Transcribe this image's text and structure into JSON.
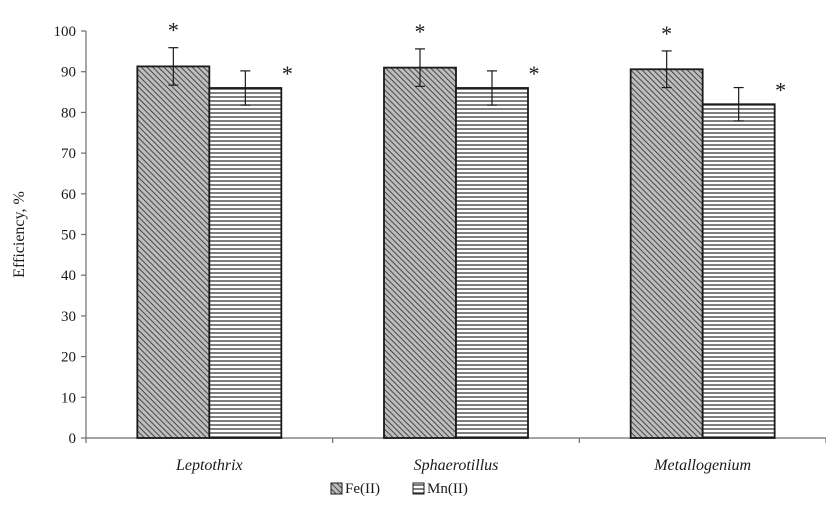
{
  "chart_data": {
    "type": "bar",
    "ylabel": "Efficiency, %",
    "ylim": [
      0,
      100
    ],
    "yticks": [
      0,
      10,
      20,
      30,
      40,
      50,
      60,
      70,
      80,
      90,
      100
    ],
    "categories": [
      "Leptothrix",
      "Sphaerotillus",
      "Metallogenium"
    ],
    "series": [
      {
        "name": "Fe(II)",
        "values": [
          91.3,
          91.0,
          90.6
        ],
        "errors": [
          4.6,
          4.6,
          4.5
        ],
        "significance": [
          "*",
          "*",
          "*"
        ],
        "pattern": "diagonal-hatch",
        "color": "#8a8a8a"
      },
      {
        "name": "Mn(II)",
        "values": [
          86.0,
          86.0,
          82.0
        ],
        "errors": [
          4.2,
          4.2,
          4.1
        ],
        "significance": [
          "*",
          "*",
          "*"
        ],
        "pattern": "horizontal-stripes",
        "color": "#ffffff"
      }
    ],
    "grid": false,
    "legend": "bottom-center"
  }
}
